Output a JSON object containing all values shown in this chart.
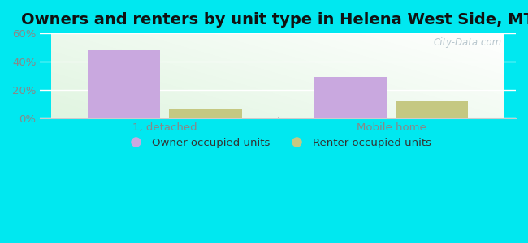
{
  "title": "Owners and renters by unit type in Helena West Side, MT",
  "categories": [
    "1, detached",
    "Mobile home"
  ],
  "owner_values": [
    48,
    29
  ],
  "renter_values": [
    7,
    12
  ],
  "owner_color": "#c9a8df",
  "renter_color": "#c5c882",
  "ylim": [
    0,
    60
  ],
  "yticks": [
    0,
    20,
    40,
    60
  ],
  "ytick_labels": [
    "0%",
    "20%",
    "40%",
    "60%"
  ],
  "bar_width": 0.32,
  "background_outer": "#00e8f0",
  "watermark": "City-Data.com",
  "legend_owner": "Owner occupied units",
  "legend_renter": "Renter occupied units",
  "title_fontsize": 14,
  "tick_fontsize": 9.5,
  "legend_fontsize": 9.5,
  "grid_color": "#ffffff",
  "tick_color": "#888888",
  "xlabel_sep_color": "#aaaaaa"
}
